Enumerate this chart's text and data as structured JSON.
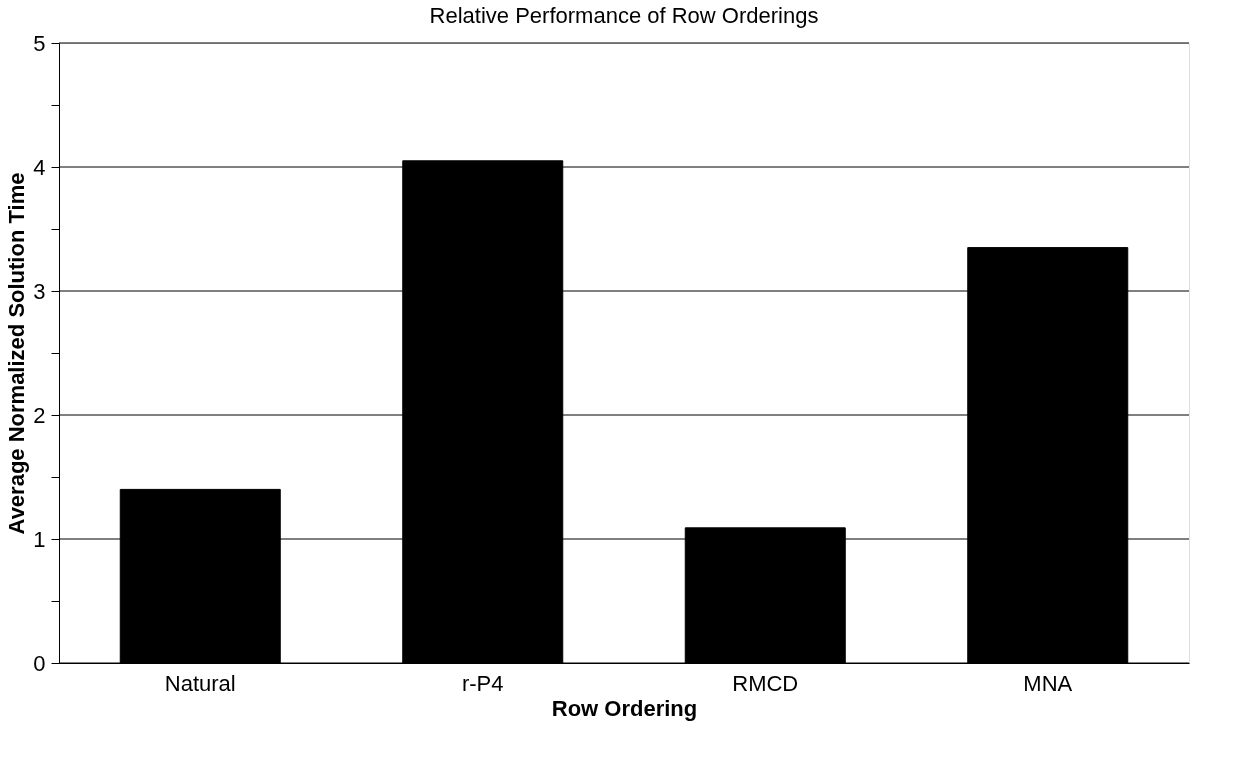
{
  "chart_data": {
    "type": "bar",
    "title": "Relative Performance of Row Orderings",
    "xlabel": "Row Ordering",
    "ylabel": "Average Normalized Solution Time",
    "categories": [
      "Natural",
      "r-P4",
      "RMCD",
      "MNA"
    ],
    "values": [
      1.4,
      4.05,
      1.09,
      3.35
    ],
    "color": "#000000",
    "ylim": [
      0,
      5
    ],
    "yticks": [
      0,
      {
        "value": 0.5,
        "label": null
      },
      1,
      {
        "value": 1.5,
        "label": null
      },
      2,
      {
        "value": 2.5,
        "label": null
      },
      3,
      {
        "value": 3.5,
        "label": null
      },
      4,
      {
        "value": 4.5,
        "label": null
      },
      5
    ],
    "grid": "y"
  }
}
